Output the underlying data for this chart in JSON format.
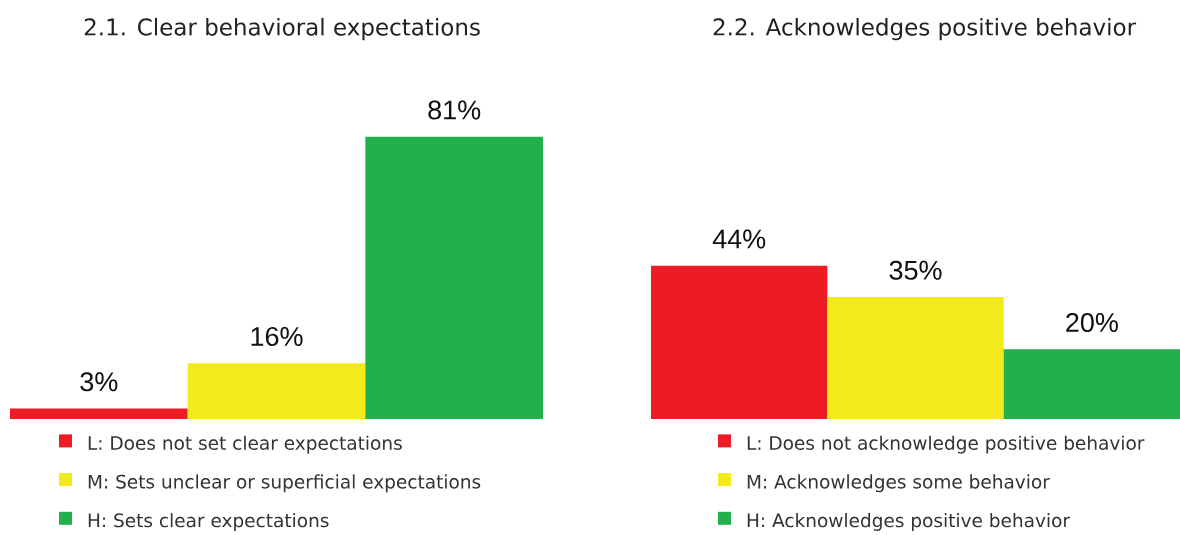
{
  "chart_data": [
    {
      "type": "bar",
      "title": "2.1. Clear behavioral expectations",
      "categories": [
        null
      ],
      "tick_labels": false,
      "legend": "bottom",
      "series": [
        {
          "name": "L: Does not set clear expectations",
          "color": "#ed1c24",
          "values": [
            3
          ],
          "value_labels": [
            "3%"
          ]
        },
        {
          "name": "M: Sets unclear or superficial expectations",
          "color": "#f2ea1a",
          "values": [
            16
          ],
          "value_labels": [
            "16%"
          ]
        },
        {
          "name": "H: Sets clear expectations",
          "color": "#21b14c",
          "values": [
            81
          ],
          "value_labels": [
            "81%"
          ]
        }
      ]
    },
    {
      "type": "bar",
      "title": "2.2. Acknowledges positive behavior",
      "categories": [
        null
      ],
      "tick_labels": false,
      "legend": "bottom",
      "series": [
        {
          "name": "L: Does not acknowledge positive behavior",
          "color": "#ed1c24",
          "values": [
            44
          ],
          "value_labels": [
            "44%"
          ]
        },
        {
          "name": "M: Acknowledges some behavior",
          "color": "#f2ea1a",
          "values": [
            35
          ],
          "value_labels": [
            "35%"
          ]
        },
        {
          "name": "H: Acknowledges positive behavior",
          "color": "#21b14c",
          "values": [
            20
          ],
          "value_labels": [
            "20%"
          ]
        }
      ]
    }
  ]
}
